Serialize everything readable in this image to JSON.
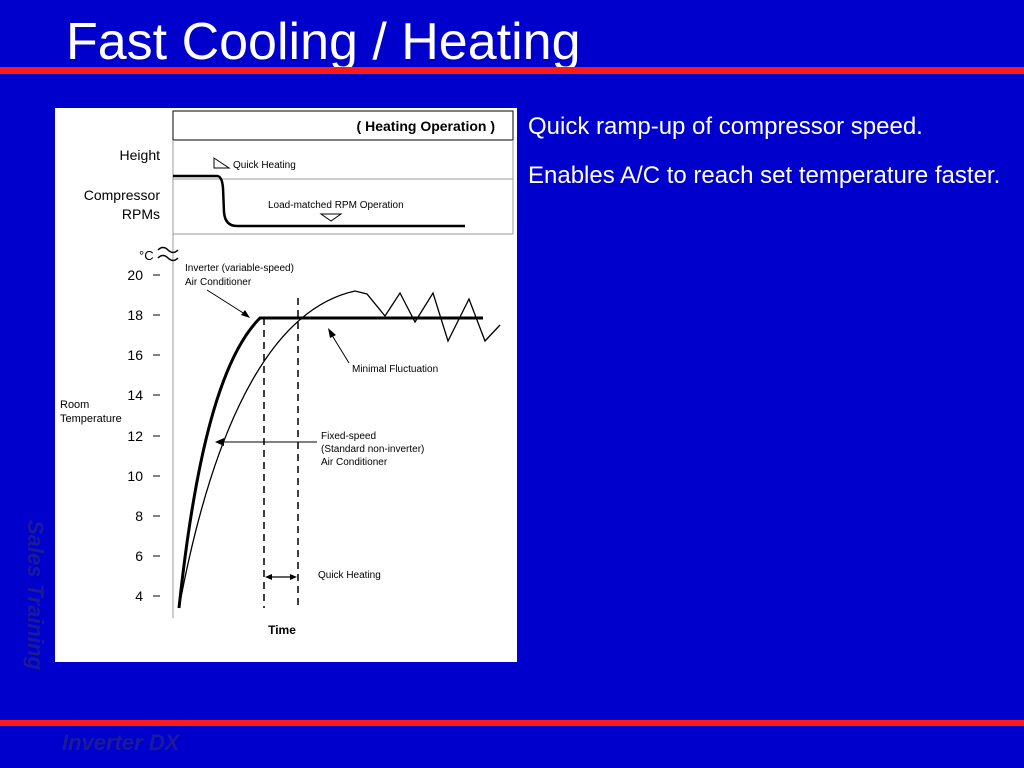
{
  "slide": {
    "title": "Fast Cooling / Heating",
    "bullets": [
      "Quick ramp-up of compressor speed.",
      "Enables A/C to reach set temperature faster."
    ],
    "side_text": "Sales Training",
    "footer_text": "Inverter DX"
  },
  "diagram": {
    "header": "( Heating Operation )",
    "height_label": "Height",
    "compressor_label_line1": "Compressor",
    "compressor_label_line2": "RPMs",
    "quick_heating_top_label": "Quick Heating",
    "load_matched_label": "Load-matched RPM Operation",
    "unit_label": "°C",
    "y_ticks": [
      "20",
      "18",
      "16",
      "14",
      "12",
      "10",
      "8",
      "6",
      "4"
    ],
    "y_axis_label_line1": "Room",
    "y_axis_label_line2": "Temperature",
    "inverter_label_line1": "Inverter (variable-speed)",
    "inverter_label_line2": "Air Conditioner",
    "minimal_fluctuation_label": "Minimal Fluctuation",
    "fixed_label_line1": "Fixed-speed",
    "fixed_label_line2": "(Standard non-inverter)",
    "fixed_label_line3": "Air Conditioner",
    "quick_heating_bottom_label": "Quick Heating",
    "x_axis_label": "Time"
  },
  "colors": {
    "background": "#0000cc",
    "rule": "#ff1a1a",
    "text": "#ffffff",
    "watermark": "#1a1a9a"
  }
}
